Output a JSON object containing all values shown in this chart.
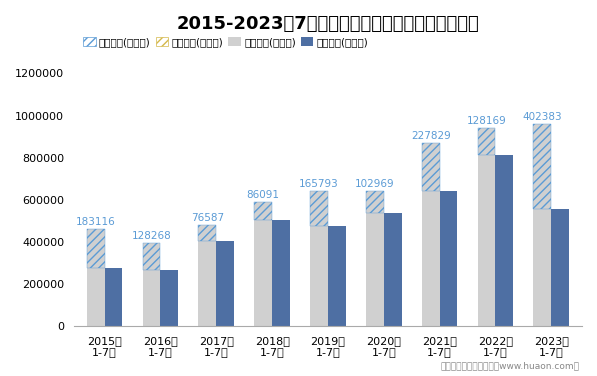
{
  "title": "2015-2023年7月安徽省外商投资企业进出口差额图",
  "categories": [
    "2015年\n1-7月",
    "2016年\n1-7月",
    "2017年\n1-7月",
    "2018年\n1-7月",
    "2019年\n1-7月",
    "2020年\n1-7月",
    "2021年\n1-7月",
    "2022年\n1-7月",
    "2023年\n1-7月"
  ],
  "export_total": [
    460000,
    395000,
    480000,
    590000,
    640000,
    640000,
    870000,
    940000,
    960000
  ],
  "import_total": [
    276884,
    266732,
    403413,
    503909,
    474207,
    537031,
    642171,
    811831,
    557617
  ],
  "surplus": [
    183116,
    128268,
    76587,
    86091,
    165793,
    102969,
    227829,
    128169,
    402383
  ],
  "bar_width": 0.32,
  "export_color": "#d0d0d0",
  "import_color": "#4e6fa3",
  "surplus_text_color": "#5b9bd5",
  "hatch_color": "#5b9bd5",
  "legend_labels": [
    "贸易顺差(万美元)",
    "贸易逆差(万美元)",
    "出口总额(万美元)",
    "进口总额(万美元)"
  ],
  "ylabel_max": 1200000,
  "yticks": [
    0,
    200000,
    400000,
    600000,
    800000,
    1000000,
    1200000
  ],
  "footnote": "制图：华经产业研究院（www.huaon.com）",
  "title_fontsize": 13,
  "annot_fontsize": 7.5,
  "tick_fontsize": 8,
  "legend_fontsize": 7.5
}
